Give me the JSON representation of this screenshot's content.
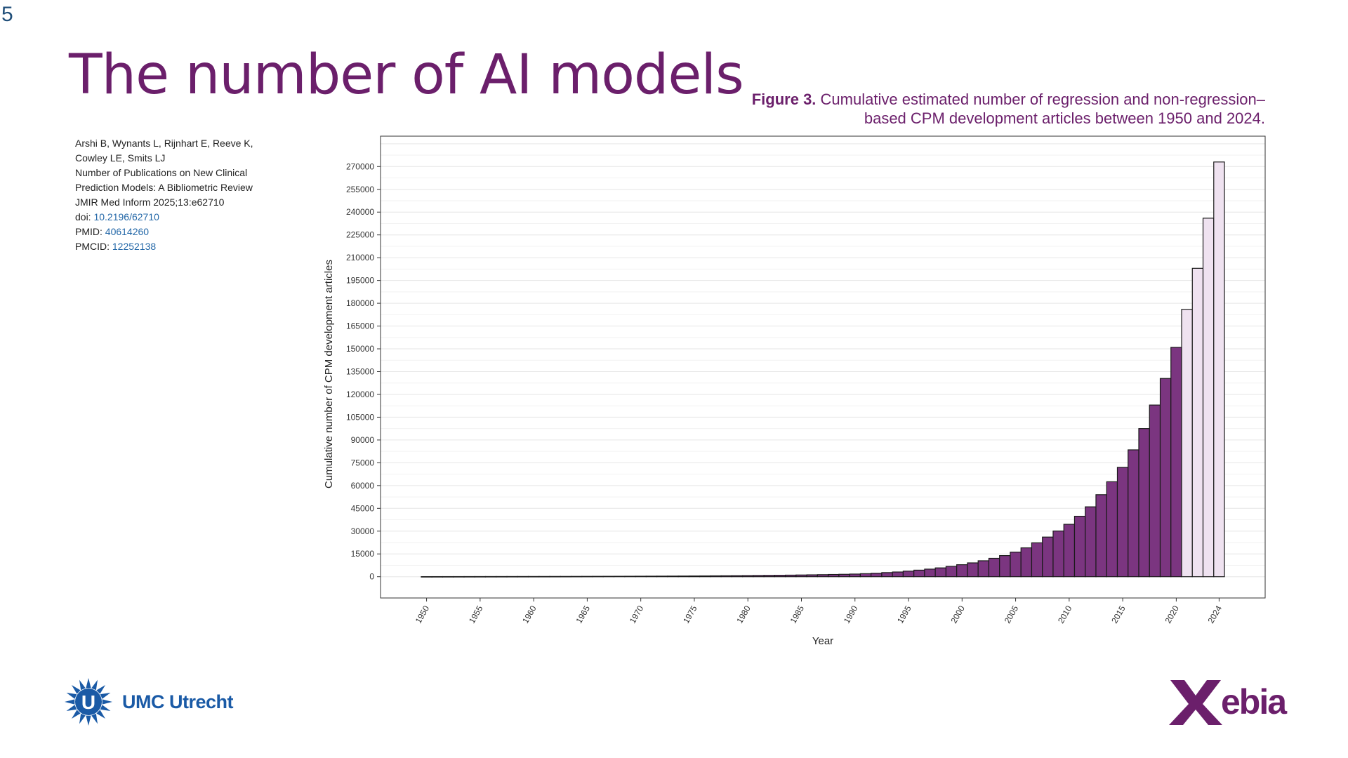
{
  "slide": {
    "number": "5",
    "title": "The number of AI models"
  },
  "caption": {
    "label": "Figure 3.",
    "text": "Cumulative estimated number of regression and non-regression–based CPM development articles between 1950 and 2024."
  },
  "reference": {
    "line1": "Arshi B, Wynants L, Rijnhart E, Reeve K,",
    "line2": "Cowley LE, Smits LJ",
    "line3": "Number of Publications on New Clinical",
    "line4": "Prediction Models: A Bibliometric Review",
    "line5": "JMIR Med Inform 2025;13:e62710",
    "doi_label": "doi:",
    "doi_value": "10.2196/62710",
    "pmid_label": "PMID:",
    "pmid_value": "40614260",
    "pmcid_label": "PMCID:",
    "pmcid_value": "12252138"
  },
  "logos": {
    "umc_text": "UMC Utrecht",
    "xebia_text": "Xebia"
  },
  "colors": {
    "title": "#6b1f6b",
    "bar_observed": "#7b3580",
    "bar_projected": "#efe2f0",
    "link": "#2468a8",
    "umc_blue": "#1a5aa6",
    "xebia_purple": "#6b1f6b"
  },
  "chart_data": {
    "type": "bar",
    "title": "",
    "xlabel": "Year",
    "ylabel": "Cumulative number of CPM development articles",
    "ylim": [
      0,
      285000
    ],
    "yticks": [
      0,
      15000,
      30000,
      45000,
      60000,
      75000,
      90000,
      105000,
      120000,
      135000,
      150000,
      165000,
      180000,
      195000,
      210000,
      225000,
      240000,
      255000,
      270000
    ],
    "xticks": [
      "1950",
      "1955",
      "1960",
      "1965",
      "1970",
      "1975",
      "1980",
      "1985",
      "1990",
      "1995",
      "2000",
      "2005",
      "2010",
      "2015",
      "2020",
      "2024"
    ],
    "grid": true,
    "x": [
      1950,
      1951,
      1952,
      1953,
      1954,
      1955,
      1956,
      1957,
      1958,
      1959,
      1960,
      1961,
      1962,
      1963,
      1964,
      1965,
      1966,
      1967,
      1968,
      1969,
      1970,
      1971,
      1972,
      1973,
      1974,
      1975,
      1976,
      1977,
      1978,
      1979,
      1980,
      1981,
      1982,
      1983,
      1984,
      1985,
      1986,
      1987,
      1988,
      1989,
      1990,
      1991,
      1992,
      1993,
      1994,
      1995,
      1996,
      1997,
      1998,
      1999,
      2000,
      2001,
      2002,
      2003,
      2004,
      2005,
      2006,
      2007,
      2008,
      2009,
      2010,
      2011,
      2012,
      2013,
      2014,
      2015,
      2016,
      2017,
      2018,
      2019,
      2020,
      2021,
      2022,
      2023,
      2024
    ],
    "values": [
      50,
      60,
      70,
      80,
      90,
      100,
      110,
      120,
      130,
      140,
      150,
      160,
      170,
      180,
      200,
      220,
      240,
      260,
      280,
      300,
      330,
      360,
      390,
      420,
      460,
      500,
      540,
      590,
      640,
      690,
      750,
      820,
      890,
      960,
      1040,
      1130,
      1230,
      1340,
      1460,
      1590,
      1750,
      2000,
      2300,
      2700,
      3100,
      3700,
      4300,
      5000,
      5800,
      6800,
      7900,
      9100,
      10500,
      12100,
      13900,
      16200,
      19000,
      22300,
      26100,
      30100,
      34500,
      39800,
      46000,
      54000,
      62500,
      72000,
      83500,
      97500,
      113000,
      130500,
      151000,
      176000,
      203000,
      236000,
      273000
    ],
    "projected_from": 2021
  }
}
